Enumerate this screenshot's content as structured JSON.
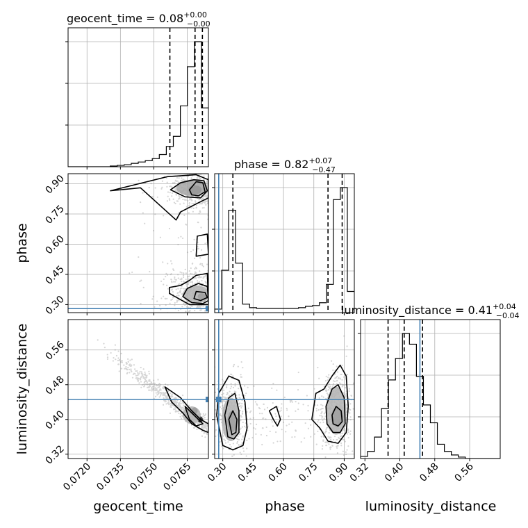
{
  "colors": {
    "truth": "#4682b4",
    "hist": "#000000",
    "grid": "#b0b0b0",
    "scatter": "#8a8a8a"
  },
  "chart_data": {
    "type": "corner",
    "parameters": [
      "geocent_time",
      "phase",
      "luminosity_distance"
    ],
    "titles": [
      {
        "prefix": "geocent_time = ",
        "value": "0.08",
        "upper": "+0.00",
        "lower": "−0.00"
      },
      {
        "prefix": "phase = ",
        "value": "0.82",
        "upper": "+0.07",
        "lower": "−0.47"
      },
      {
        "prefix": "luminosity_distance = ",
        "value": "0.41",
        "upper": "+0.04",
        "lower": "−0.04"
      }
    ],
    "axis_labels": {
      "geocent_time": "geocent_time",
      "phase": "phase",
      "luminosity_distance": "luminosity_distance"
    },
    "ranges": {
      "geocent_time": [
        0.07115,
        0.07745
      ],
      "phase": [
        0.26,
        0.95
      ],
      "luminosity_distance": [
        0.31,
        0.63
      ]
    },
    "ticks": {
      "geocent_time": [
        "0.0720",
        "0.0735",
        "0.0750",
        "0.0765"
      ],
      "phase": [
        "0.30",
        "0.45",
        "0.60",
        "0.75",
        "0.90"
      ],
      "luminosity_distance": [
        "0.32",
        "0.40",
        "0.48",
        "0.56"
      ]
    },
    "truths": {
      "phase": 0.28,
      "luminosity_distance": 0.446
    },
    "histograms": {
      "geocent_time": {
        "edges": [
          0.07115,
          0.071465,
          0.07178,
          0.072095,
          0.07241,
          0.072725,
          0.07304,
          0.073355,
          0.07367,
          0.073985,
          0.0743,
          0.074615,
          0.07493,
          0.075245,
          0.07556,
          0.075875,
          0.07619,
          0.076505,
          0.07682,
          0.077135,
          0.07745
        ],
        "counts": [
          0,
          0,
          0,
          0,
          0,
          0,
          1,
          2,
          3,
          5,
          7,
          9,
          12,
          18,
          30,
          45,
          90,
          148,
          185,
          87
        ],
        "quantiles": [
          0.07572,
          0.07685,
          0.07718
        ]
      },
      "phase": {
        "edges": [
          0.26,
          0.2945,
          0.329,
          0.3635,
          0.398,
          0.4325,
          0.467,
          0.5015,
          0.536,
          0.5705,
          0.605,
          0.6395,
          0.674,
          0.7085,
          0.743,
          0.7775,
          0.812,
          0.8465,
          0.881,
          0.9155,
          0.95
        ],
        "counts": [
          5,
          60,
          145,
          70,
          12,
          7,
          6,
          6,
          6,
          6,
          6,
          6,
          7,
          9,
          10,
          14,
          40,
          160,
          177,
          30
        ],
        "quantiles": [
          0.35,
          0.82,
          0.89
        ]
      },
      "luminosity_distance": {
        "edges": [
          0.31,
          0.326,
          0.342,
          0.358,
          0.374,
          0.39,
          0.406,
          0.422,
          0.438,
          0.454,
          0.47,
          0.486,
          0.502,
          0.518,
          0.534,
          0.55,
          0.566,
          0.582,
          0.598,
          0.614,
          0.63
        ],
        "counts": [
          3,
          10,
          30,
          70,
          110,
          140,
          175,
          160,
          115,
          75,
          50,
          20,
          10,
          5,
          2,
          0,
          0,
          0,
          0,
          0
        ],
        "quantiles": [
          0.373,
          0.41,
          0.452
        ]
      }
    },
    "pairs": [
      {
        "x": "geocent_time",
        "y": "phase",
        "contours": [
          [
            [
              0.07305,
              0.865
            ],
            [
              0.0756,
              0.935
            ],
            [
              0.0769,
              0.945
            ],
            [
              0.07745,
              0.92
            ],
            [
              0.07745,
              0.83
            ],
            [
              0.0769,
              0.8
            ],
            [
              0.0762,
              0.76
            ],
            [
              0.076,
              0.72
            ],
            [
              0.0744,
              0.88
            ],
            [
              0.07305,
              0.865
            ]
          ],
          [
            [
              0.07575,
              0.87
            ],
            [
              0.0762,
              0.905
            ],
            [
              0.0768,
              0.92
            ],
            [
              0.07725,
              0.915
            ],
            [
              0.0774,
              0.865
            ],
            [
              0.0771,
              0.83
            ],
            [
              0.0764,
              0.835
            ],
            [
              0.07575,
              0.87
            ]
          ],
          [
            [
              0.0766,
              0.87
            ],
            [
              0.0769,
              0.91
            ],
            [
              0.0772,
              0.905
            ],
            [
              0.0773,
              0.86
            ],
            [
              0.077,
              0.84
            ],
            [
              0.0767,
              0.845
            ],
            [
              0.0766,
              0.87
            ]
          ],
          [
            [
              0.0757,
              0.355
            ],
            [
              0.0757,
              0.385
            ],
            [
              0.0762,
              0.395
            ],
            [
              0.0766,
              0.42
            ],
            [
              0.0769,
              0.445
            ],
            [
              0.0774,
              0.455
            ],
            [
              0.07745,
              0.3
            ],
            [
              0.0766,
              0.3
            ],
            [
              0.0757,
              0.355
            ]
          ],
          [
            [
              0.0763,
              0.34
            ],
            [
              0.0765,
              0.38
            ],
            [
              0.077,
              0.405
            ],
            [
              0.0774,
              0.39
            ],
            [
              0.07745,
              0.32
            ],
            [
              0.0772,
              0.305
            ],
            [
              0.0767,
              0.31
            ],
            [
              0.0763,
              0.34
            ]
          ],
          [
            [
              0.0768,
              0.33
            ],
            [
              0.0769,
              0.365
            ],
            [
              0.0773,
              0.36
            ],
            [
              0.0774,
              0.335
            ],
            [
              0.0771,
              0.32
            ],
            [
              0.0768,
              0.33
            ]
          ],
          [
            [
              0.0769,
              0.54
            ],
            [
              0.07695,
              0.64
            ],
            [
              0.0774,
              0.65
            ],
            [
              0.07745,
              0.55
            ],
            [
              0.0769,
              0.54
            ]
          ]
        ],
        "blobs": [
          {
            "x": 0.07685,
            "y": 0.87,
            "rx": 0.0003,
            "ry": 0.022,
            "shade": 0.75
          },
          {
            "x": 0.0767,
            "y": 0.88,
            "rx": 0.0007,
            "ry": 0.04,
            "shade": 0.35
          },
          {
            "x": 0.07715,
            "y": 0.34,
            "rx": 0.00018,
            "ry": 0.016,
            "shade": 0.85
          },
          {
            "x": 0.0769,
            "y": 0.35,
            "rx": 0.0006,
            "ry": 0.045,
            "shade": 0.3
          }
        ]
      },
      {
        "x": "geocent_time",
        "y": "luminosity_distance",
        "contours": [
          [
            [
              0.0755,
              0.475
            ],
            [
              0.0762,
              0.45
            ],
            [
              0.0767,
              0.42
            ],
            [
              0.0771,
              0.4
            ],
            [
              0.07745,
              0.39
            ],
            [
              0.07745,
              0.37
            ],
            [
              0.0772,
              0.375
            ],
            [
              0.0767,
              0.39
            ],
            [
              0.0763,
              0.415
            ],
            [
              0.0758,
              0.44
            ],
            [
              0.0755,
              0.475
            ]
          ],
          [
            [
              0.0764,
              0.43
            ],
            [
              0.0767,
              0.415
            ],
            [
              0.077,
              0.4
            ],
            [
              0.0772,
              0.39
            ],
            [
              0.0769,
              0.385
            ],
            [
              0.0766,
              0.4
            ],
            [
              0.0764,
              0.43
            ]
          ]
        ],
        "blobs": [
          {
            "x": 0.07683,
            "y": 0.42,
            "rx": 0.00014,
            "ry": 0.008,
            "shade": 0.9
          },
          {
            "x": 0.07708,
            "y": 0.4,
            "rx": 0.00012,
            "ry": 0.007,
            "shade": 0.9
          },
          {
            "x": 0.0767,
            "y": 0.41,
            "rx": 0.0004,
            "ry": 0.02,
            "shade": 0.3
          }
        ]
      },
      {
        "x": "phase",
        "y": "luminosity_distance",
        "contours": [
          [
            [
              0.27,
              0.41
            ],
            [
              0.28,
              0.46
            ],
            [
              0.33,
              0.5
            ],
            [
              0.38,
              0.49
            ],
            [
              0.41,
              0.44
            ],
            [
              0.42,
              0.38
            ],
            [
              0.4,
              0.34
            ],
            [
              0.35,
              0.33
            ],
            [
              0.3,
              0.34
            ],
            [
              0.27,
              0.41
            ]
          ],
          [
            [
              0.31,
              0.41
            ],
            [
              0.33,
              0.45
            ],
            [
              0.36,
              0.46
            ],
            [
              0.38,
              0.42
            ],
            [
              0.38,
              0.37
            ],
            [
              0.355,
              0.355
            ],
            [
              0.325,
              0.36
            ],
            [
              0.31,
              0.41
            ]
          ],
          [
            [
              0.33,
              0.4
            ],
            [
              0.35,
              0.42
            ],
            [
              0.37,
              0.4
            ],
            [
              0.365,
              0.37
            ],
            [
              0.345,
              0.365
            ],
            [
              0.33,
              0.4
            ]
          ],
          [
            [
              0.53,
              0.42
            ],
            [
              0.565,
              0.43
            ],
            [
              0.585,
              0.4
            ],
            [
              0.57,
              0.385
            ],
            [
              0.55,
              0.4
            ],
            [
              0.53,
              0.42
            ]
          ],
          [
            [
              0.74,
              0.4
            ],
            [
              0.76,
              0.46
            ],
            [
              0.8,
              0.47
            ],
            [
              0.84,
              0.5
            ],
            [
              0.88,
              0.525
            ],
            [
              0.91,
              0.5
            ],
            [
              0.92,
              0.43
            ],
            [
              0.91,
              0.37
            ],
            [
              0.87,
              0.345
            ],
            [
              0.82,
              0.35
            ],
            [
              0.78,
              0.38
            ],
            [
              0.74,
              0.4
            ]
          ],
          [
            [
              0.81,
              0.43
            ],
            [
              0.84,
              0.47
            ],
            [
              0.87,
              0.48
            ],
            [
              0.9,
              0.45
            ],
            [
              0.905,
              0.39
            ],
            [
              0.88,
              0.37
            ],
            [
              0.845,
              0.37
            ],
            [
              0.815,
              0.39
            ],
            [
              0.81,
              0.43
            ]
          ],
          [
            [
              0.84,
              0.41
            ],
            [
              0.86,
              0.43
            ],
            [
              0.885,
              0.42
            ],
            [
              0.89,
              0.395
            ],
            [
              0.87,
              0.385
            ],
            [
              0.845,
              0.39
            ],
            [
              0.84,
              0.41
            ]
          ]
        ],
        "blobs": [
          {
            "x": 0.345,
            "y": 0.395,
            "rx": 0.022,
            "ry": 0.025,
            "shade": 0.8
          },
          {
            "x": 0.34,
            "y": 0.4,
            "rx": 0.045,
            "ry": 0.05,
            "shade": 0.3
          },
          {
            "x": 0.865,
            "y": 0.405,
            "rx": 0.03,
            "ry": 0.022,
            "shade": 0.8
          },
          {
            "x": 0.86,
            "y": 0.42,
            "rx": 0.05,
            "ry": 0.055,
            "shade": 0.3
          }
        ]
      }
    ]
  }
}
